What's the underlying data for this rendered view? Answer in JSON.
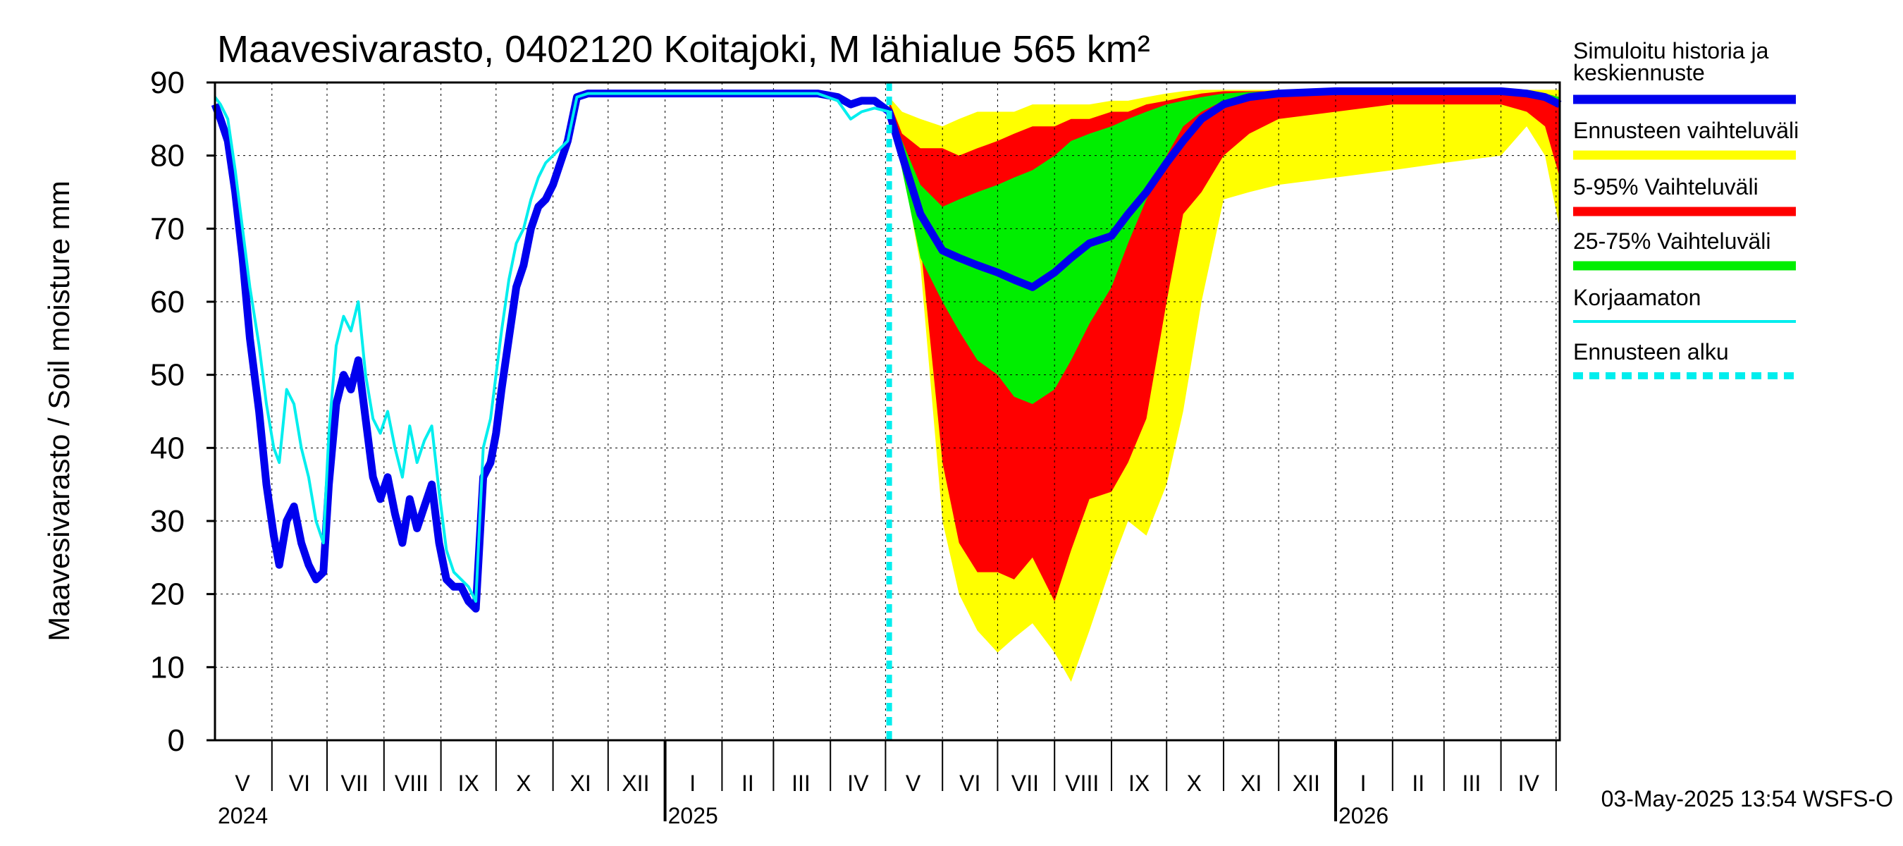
{
  "chart_data": {
    "type": "area",
    "title": "Maavesivarasto, 0402120 Koitajoki, M lähialue 565 km²",
    "ylabel": "Maavesivarasto / Soil moisture   mm",
    "xlabel": "",
    "ylim": [
      0,
      90
    ],
    "yticks": [
      "0",
      "10",
      "20",
      "30",
      "40",
      "50",
      "60",
      "70",
      "80",
      "90"
    ],
    "xlim": [
      "2024-05-01",
      "2026-05-03"
    ],
    "grid": true,
    "legend_position": "right",
    "month_labels": [
      {
        "label": "V",
        "date": "2024-05-16"
      },
      {
        "label": "VI",
        "date": "2024-06-16"
      },
      {
        "label": "VII",
        "date": "2024-07-16"
      },
      {
        "label": "VIII",
        "date": "2024-08-16"
      },
      {
        "label": "IX",
        "date": "2024-09-16"
      },
      {
        "label": "X",
        "date": "2024-10-16"
      },
      {
        "label": "XI",
        "date": "2024-11-16"
      },
      {
        "label": "XII",
        "date": "2024-12-16"
      },
      {
        "label": "I",
        "date": "2025-01-16"
      },
      {
        "label": "II",
        "date": "2025-02-15"
      },
      {
        "label": "III",
        "date": "2025-03-16"
      },
      {
        "label": "IV",
        "date": "2025-04-16"
      },
      {
        "label": "V",
        "date": "2025-05-16"
      },
      {
        "label": "VI",
        "date": "2025-06-16"
      },
      {
        "label": "VII",
        "date": "2025-07-16"
      },
      {
        "label": "VIII",
        "date": "2025-08-16"
      },
      {
        "label": "IX",
        "date": "2025-09-16"
      },
      {
        "label": "X",
        "date": "2025-10-16"
      },
      {
        "label": "XI",
        "date": "2025-11-16"
      },
      {
        "label": "XII",
        "date": "2025-12-16"
      },
      {
        "label": "I",
        "date": "2026-01-16"
      },
      {
        "label": "II",
        "date": "2026-02-15"
      },
      {
        "label": "III",
        "date": "2026-03-16"
      },
      {
        "label": "IV",
        "date": "2026-04-16"
      }
    ],
    "year_labels": [
      {
        "label": "2024",
        "date": "2024-05-01"
      },
      {
        "label": "2025",
        "date": "2025-01-01"
      },
      {
        "label": "2026",
        "date": "2026-01-01"
      }
    ],
    "forecast_start": "2025-05-03",
    "legend": [
      {
        "label": "Simuloitu historia ja keskiennuste",
        "color": "#0000ee"
      },
      {
        "label": "Ennusteen vaihteluväli",
        "color": "#ffff00"
      },
      {
        "label": "5-95% Vaihteluväli",
        "color": "#ff0000"
      },
      {
        "label": "25-75% Vaihteluväli",
        "color": "#00ee00"
      },
      {
        "label": "Korjaamaton",
        "color": "#00eeee"
      },
      {
        "label": "Ennusteen alku",
        "color": "#00eeee"
      }
    ],
    "series": [
      {
        "name": "Simuloitu historia ja keskiennuste",
        "color": "#0000ee",
        "x": [
          "2024-05-01",
          "2024-05-04",
          "2024-05-08",
          "2024-05-12",
          "2024-05-16",
          "2024-05-20",
          "2024-05-25",
          "2024-05-29",
          "2024-06-02",
          "2024-06-05",
          "2024-06-09",
          "2024-06-13",
          "2024-06-17",
          "2024-06-21",
          "2024-06-25",
          "2024-06-29",
          "2024-07-02",
          "2024-07-06",
          "2024-07-10",
          "2024-07-14",
          "2024-07-18",
          "2024-07-22",
          "2024-07-26",
          "2024-07-30",
          "2024-08-03",
          "2024-08-07",
          "2024-08-11",
          "2024-08-15",
          "2024-08-19",
          "2024-08-23",
          "2024-08-27",
          "2024-08-31",
          "2024-09-04",
          "2024-09-08",
          "2024-09-12",
          "2024-09-16",
          "2024-09-20",
          "2024-09-24",
          "2024-09-28",
          "2024-10-01",
          "2024-10-04",
          "2024-10-08",
          "2024-10-12",
          "2024-10-16",
          "2024-10-20",
          "2024-10-24",
          "2024-10-28",
          "2024-11-01",
          "2024-11-05",
          "2024-11-09",
          "2024-11-14",
          "2024-11-20",
          "2024-11-25",
          "2024-12-01",
          "2024-12-15",
          "2025-01-01",
          "2025-02-01",
          "2025-03-01",
          "2025-03-25",
          "2025-04-05",
          "2025-04-12",
          "2025-04-18",
          "2025-04-25",
          "2025-05-03",
          "2025-05-10",
          "2025-05-20",
          "2025-06-01",
          "2025-06-10",
          "2025-06-20",
          "2025-07-01",
          "2025-07-10",
          "2025-07-20",
          "2025-08-01",
          "2025-08-10",
          "2025-08-20",
          "2025-09-01",
          "2025-09-10",
          "2025-09-20",
          "2025-10-01",
          "2025-10-10",
          "2025-10-20",
          "2025-11-01",
          "2025-11-15",
          "2025-12-01",
          "2026-01-01",
          "2026-02-01",
          "2026-03-01",
          "2026-04-01",
          "2026-04-15",
          "2026-04-25",
          "2026-05-03"
        ],
        "y": [
          87,
          85,
          82,
          75,
          66,
          55,
          45,
          35,
          28,
          24,
          30,
          32,
          27,
          24,
          22,
          23,
          35,
          46,
          50,
          48,
          52,
          44,
          36,
          33,
          36,
          31,
          27,
          33,
          29,
          32,
          35,
          27,
          22,
          21,
          21,
          19,
          18,
          36,
          38,
          42,
          48,
          55,
          62,
          65,
          70,
          73,
          74,
          76,
          79,
          82,
          88,
          88.5,
          88.5,
          88.5,
          88.5,
          88.5,
          88.5,
          88.5,
          88.5,
          88,
          87,
          87.5,
          87.5,
          86,
          80,
          72,
          67,
          66,
          65,
          64,
          63,
          62,
          64,
          66,
          68,
          69,
          72,
          75,
          79,
          82,
          85,
          87,
          88,
          88.5,
          88.8,
          88.8,
          88.8,
          88.8,
          88.5,
          88,
          87
        ]
      },
      {
        "name": "Korjaamaton",
        "color": "#00eeee",
        "x": [
          "2024-05-01",
          "2024-05-04",
          "2024-05-08",
          "2024-05-12",
          "2024-05-16",
          "2024-05-20",
          "2024-05-25",
          "2024-05-29",
          "2024-06-02",
          "2024-06-05",
          "2024-06-09",
          "2024-06-13",
          "2024-06-17",
          "2024-06-21",
          "2024-06-25",
          "2024-06-29",
          "2024-07-02",
          "2024-07-06",
          "2024-07-10",
          "2024-07-14",
          "2024-07-18",
          "2024-07-22",
          "2024-07-26",
          "2024-07-30",
          "2024-08-03",
          "2024-08-07",
          "2024-08-11",
          "2024-08-15",
          "2024-08-19",
          "2024-08-23",
          "2024-08-27",
          "2024-08-31",
          "2024-09-04",
          "2024-09-08",
          "2024-09-12",
          "2024-09-16",
          "2024-09-20",
          "2024-09-24",
          "2024-09-28",
          "2024-10-01",
          "2024-10-04",
          "2024-10-08",
          "2024-10-12",
          "2024-10-16",
          "2024-10-20",
          "2024-10-24",
          "2024-10-28",
          "2024-11-01",
          "2024-11-05",
          "2024-11-09",
          "2024-11-14",
          "2024-11-20",
          "2024-11-25",
          "2024-12-01",
          "2024-12-15",
          "2025-01-01",
          "2025-02-01",
          "2025-03-01",
          "2025-03-25",
          "2025-04-05",
          "2025-04-12",
          "2025-04-18",
          "2025-04-25",
          "2025-05-03"
        ],
        "y": [
          88,
          87,
          85,
          78,
          70,
          62,
          54,
          46,
          40,
          38,
          48,
          46,
          40,
          36,
          30,
          27,
          42,
          54,
          58,
          56,
          60,
          50,
          44,
          42,
          45,
          40,
          36,
          43,
          38,
          41,
          43,
          34,
          26,
          23,
          22,
          21,
          19,
          40,
          44,
          50,
          56,
          63,
          68,
          70,
          74,
          77,
          79,
          80,
          81,
          82,
          88,
          88.5,
          88.5,
          88.5,
          88.5,
          88.5,
          88.5,
          88.5,
          88.5,
          87.5,
          85,
          86,
          86.5,
          86
        ]
      }
    ],
    "bands": [
      {
        "name": "Ennusteen vaihteluväli",
        "color": "#ffff00",
        "x": [
          "2025-05-03",
          "2025-05-10",
          "2025-05-20",
          "2025-06-01",
          "2025-06-10",
          "2025-06-20",
          "2025-07-01",
          "2025-07-10",
          "2025-07-20",
          "2025-08-01",
          "2025-08-10",
          "2025-08-20",
          "2025-09-01",
          "2025-09-10",
          "2025-09-20",
          "2025-10-01",
          "2025-10-10",
          "2025-10-20",
          "2025-11-01",
          "2025-11-15",
          "2025-12-01",
          "2026-01-01",
          "2026-02-01",
          "2026-03-01",
          "2026-04-01",
          "2026-04-15",
          "2026-04-25",
          "2026-05-03"
        ],
        "low": [
          86,
          79,
          65,
          30,
          20,
          15,
          12,
          14,
          16,
          12,
          8,
          15,
          24,
          30,
          28,
          35,
          45,
          60,
          74,
          75,
          76,
          77,
          78,
          79,
          80,
          84,
          80,
          70
        ],
        "high": [
          88,
          86,
          85,
          84,
          85,
          86,
          86,
          86,
          87,
          87,
          87,
          87,
          87.5,
          87.5,
          88,
          88.5,
          88.8,
          89,
          89,
          89,
          89,
          89,
          89,
          89,
          89,
          89,
          89,
          89
        ]
      },
      {
        "name": "5-95% Vaihteluväli",
        "color": "#ff0000",
        "x": [
          "2025-05-03",
          "2025-05-10",
          "2025-05-20",
          "2025-06-01",
          "2025-06-10",
          "2025-06-20",
          "2025-07-01",
          "2025-07-10",
          "2025-07-20",
          "2025-08-01",
          "2025-08-10",
          "2025-08-20",
          "2025-09-01",
          "2025-09-10",
          "2025-09-20",
          "2025-10-01",
          "2025-10-10",
          "2025-10-20",
          "2025-11-01",
          "2025-11-15",
          "2025-12-01",
          "2026-01-01",
          "2026-02-01",
          "2026-03-01",
          "2026-04-01",
          "2026-04-15",
          "2026-04-25",
          "2026-05-03"
        ],
        "low": [
          86,
          79,
          68,
          38,
          27,
          23,
          23,
          22,
          25,
          19,
          26,
          33,
          34,
          38,
          44,
          60,
          72,
          75,
          80,
          83,
          85,
          86,
          87,
          87,
          87,
          86,
          84,
          77
        ],
        "high": [
          87.5,
          83,
          81,
          81,
          80,
          81,
          82,
          83,
          84,
          84,
          85,
          85,
          86,
          86,
          87,
          87.5,
          88,
          88.5,
          88.8,
          88.8,
          88.8,
          88.8,
          88.8,
          88.8,
          88.8,
          88.8,
          88.5,
          88
        ]
      },
      {
        "name": "25-75% Vaihteluväli",
        "color": "#00ee00",
        "x": [
          "2025-05-03",
          "2025-05-10",
          "2025-05-20",
          "2025-06-01",
          "2025-06-10",
          "2025-06-20",
          "2025-07-01",
          "2025-07-10",
          "2025-07-20",
          "2025-08-01",
          "2025-08-10",
          "2025-08-20",
          "2025-09-01",
          "2025-09-10",
          "2025-09-20",
          "2025-10-01",
          "2025-10-10",
          "2025-10-20",
          "2025-11-01",
          "2025-11-15",
          "2025-12-01",
          "2026-01-01",
          "2026-02-01",
          "2026-03-01",
          "2026-04-01",
          "2026-04-15",
          "2026-04-25",
          "2026-05-03"
        ],
        "low": [
          86,
          78,
          66,
          60,
          56,
          52,
          50,
          47,
          46,
          48,
          52,
          57,
          62,
          68,
          74,
          80,
          84,
          86,
          87.5,
          88,
          88.3,
          88.5,
          88.5,
          88.5,
          88.5,
          88.3,
          88,
          87
        ],
        "high": [
          87,
          82,
          76,
          73,
          74,
          75,
          76,
          77,
          78,
          80,
          82,
          83,
          84,
          85,
          86,
          87,
          87.5,
          88,
          88.5,
          88.7,
          88.8,
          88.8,
          88.8,
          88.8,
          88.8,
          88.7,
          88.5,
          88
        ]
      }
    ]
  },
  "footer": {
    "timestamp": "03-May-2025 13:54 WSFS-O"
  }
}
